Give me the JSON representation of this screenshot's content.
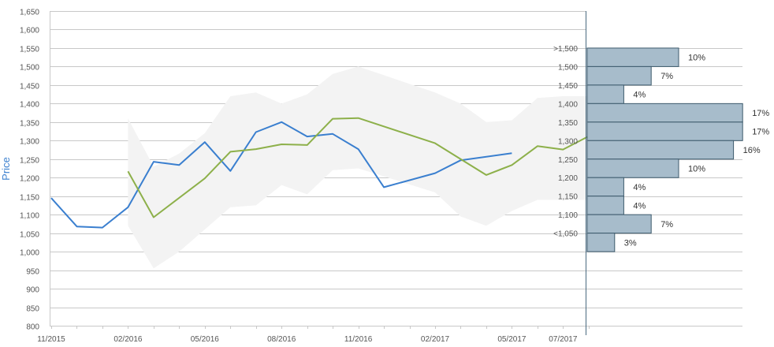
{
  "chart_data": {
    "type": "line",
    "ylabel": "Price",
    "ylim": [
      800,
      1650
    ],
    "y_ticks": [
      "800",
      "850",
      "900",
      "950",
      "1,000",
      "1,050",
      "1,100",
      "1,150",
      "1,200",
      "1,250",
      "1,300",
      "1,350",
      "1,400",
      "1,450",
      "1,500",
      "1,550",
      "1,600",
      "1,650"
    ],
    "x_ticks": [
      "11/2015",
      "02/2016",
      "05/2016",
      "08/2016",
      "11/2016",
      "02/2017",
      "05/2017",
      "07/2017"
    ],
    "grid": true,
    "colors": {
      "blue": "#3a7fcf",
      "green": "#8db04a",
      "band": "#f3f3f3",
      "hist_fill": "#a7bccb",
      "hist_stroke": "#3d5a6c"
    },
    "series": [
      {
        "values": [
          [
            "2015-11-01",
            1145
          ],
          [
            "2015-12-01",
            1068
          ],
          [
            "2016-01-01",
            1065
          ],
          [
            "2016-02-01",
            1120
          ],
          [
            "2016-03-01",
            1243
          ],
          [
            "2016-04-01",
            1234
          ],
          [
            "2016-05-01",
            1296
          ],
          [
            "2016-06-01",
            1218
          ],
          [
            "2016-07-01",
            1323
          ],
          [
            "2016-08-01",
            1350
          ],
          [
            "2016-09-01",
            1311
          ],
          [
            "2016-10-01",
            1318
          ],
          [
            "2016-11-01",
            1277
          ],
          [
            "2016-12-01",
            1174
          ],
          [
            "2017-02-01",
            1212
          ],
          [
            "2017-03-01",
            1247
          ],
          [
            "2017-05-01",
            1266
          ]
        ]
      },
      {
        "values": [
          [
            "2016-02-01",
            1217
          ],
          [
            "2016-03-01",
            1093
          ],
          [
            "2016-05-01",
            1198
          ],
          [
            "2016-06-01",
            1270
          ],
          [
            "2016-07-01",
            1277
          ],
          [
            "2016-08-01",
            1290
          ],
          [
            "2016-09-01",
            1288
          ],
          [
            "2016-10-01",
            1359
          ],
          [
            "2016-11-01",
            1361
          ],
          [
            "2017-02-01",
            1293
          ],
          [
            "2017-04-01",
            1207
          ],
          [
            "2017-05-01",
            1234
          ],
          [
            "2017-06-01",
            1285
          ],
          [
            "2017-07-01",
            1276
          ],
          [
            "2017-08-01",
            1312
          ]
        ]
      }
    ],
    "band": {
      "upper": [
        [
          "2016-02-01",
          1360
        ],
        [
          "2016-03-01",
          1230
        ],
        [
          "2016-04-01",
          1265
        ],
        [
          "2016-05-01",
          1320
        ],
        [
          "2016-06-01",
          1420
        ],
        [
          "2016-07-01",
          1430
        ],
        [
          "2016-08-01",
          1400
        ],
        [
          "2016-09-01",
          1425
        ],
        [
          "2016-10-01",
          1480
        ],
        [
          "2016-11-01",
          1500
        ],
        [
          "2017-02-01",
          1430
        ],
        [
          "2017-03-01",
          1400
        ],
        [
          "2017-04-01",
          1350
        ],
        [
          "2017-05-01",
          1355
        ],
        [
          "2017-06-01",
          1415
        ],
        [
          "2017-07-01",
          1420
        ],
        [
          "2017-08-01",
          1420
        ]
      ],
      "lower": [
        [
          "2016-02-01",
          1070
        ],
        [
          "2016-03-01",
          955
        ],
        [
          "2016-04-01",
          1000
        ],
        [
          "2016-05-01",
          1060
        ],
        [
          "2016-06-01",
          1120
        ],
        [
          "2016-07-01",
          1125
        ],
        [
          "2016-08-01",
          1180
        ],
        [
          "2016-09-01",
          1155
        ],
        [
          "2016-10-01",
          1220
        ],
        [
          "2016-11-01",
          1225
        ],
        [
          "2017-02-01",
          1160
        ],
        [
          "2017-03-01",
          1095
        ],
        [
          "2017-04-01",
          1070
        ],
        [
          "2017-05-01",
          1110
        ],
        [
          "2017-06-01",
          1140
        ],
        [
          "2017-07-01",
          1140
        ],
        [
          "2017-08-01",
          1140
        ]
      ]
    },
    "distribution": {
      "bins": [
        {
          "label": ">1,500",
          "low": 1500,
          "high": 1550,
          "percent": 10,
          "text": "10%"
        },
        {
          "label": "1,500",
          "low": 1450,
          "high": 1500,
          "percent": 7,
          "text": "7%"
        },
        {
          "label": "1,450",
          "low": 1400,
          "high": 1450,
          "percent": 4,
          "text": "4%"
        },
        {
          "label": "1,400",
          "low": 1350,
          "high": 1400,
          "percent": 17,
          "text": "17%"
        },
        {
          "label": "1,350",
          "low": 1300,
          "high": 1350,
          "percent": 17,
          "text": "17%"
        },
        {
          "label": "1,300",
          "low": 1250,
          "high": 1300,
          "percent": 16,
          "text": "16%"
        },
        {
          "label": "1,250",
          "low": 1200,
          "high": 1250,
          "percent": 10,
          "text": "10%"
        },
        {
          "label": "1,200",
          "low": 1150,
          "high": 1200,
          "percent": 4,
          "text": "4%"
        },
        {
          "label": "1,150",
          "low": 1100,
          "high": 1150,
          "percent": 4,
          "text": "4%"
        },
        {
          "label": "1,100",
          "low": 1050,
          "high": 1100,
          "percent": 7,
          "text": "7%"
        },
        {
          "label": "<1,050",
          "low": 1000,
          "high": 1050,
          "percent": 3,
          "text": "3%"
        }
      ]
    }
  }
}
